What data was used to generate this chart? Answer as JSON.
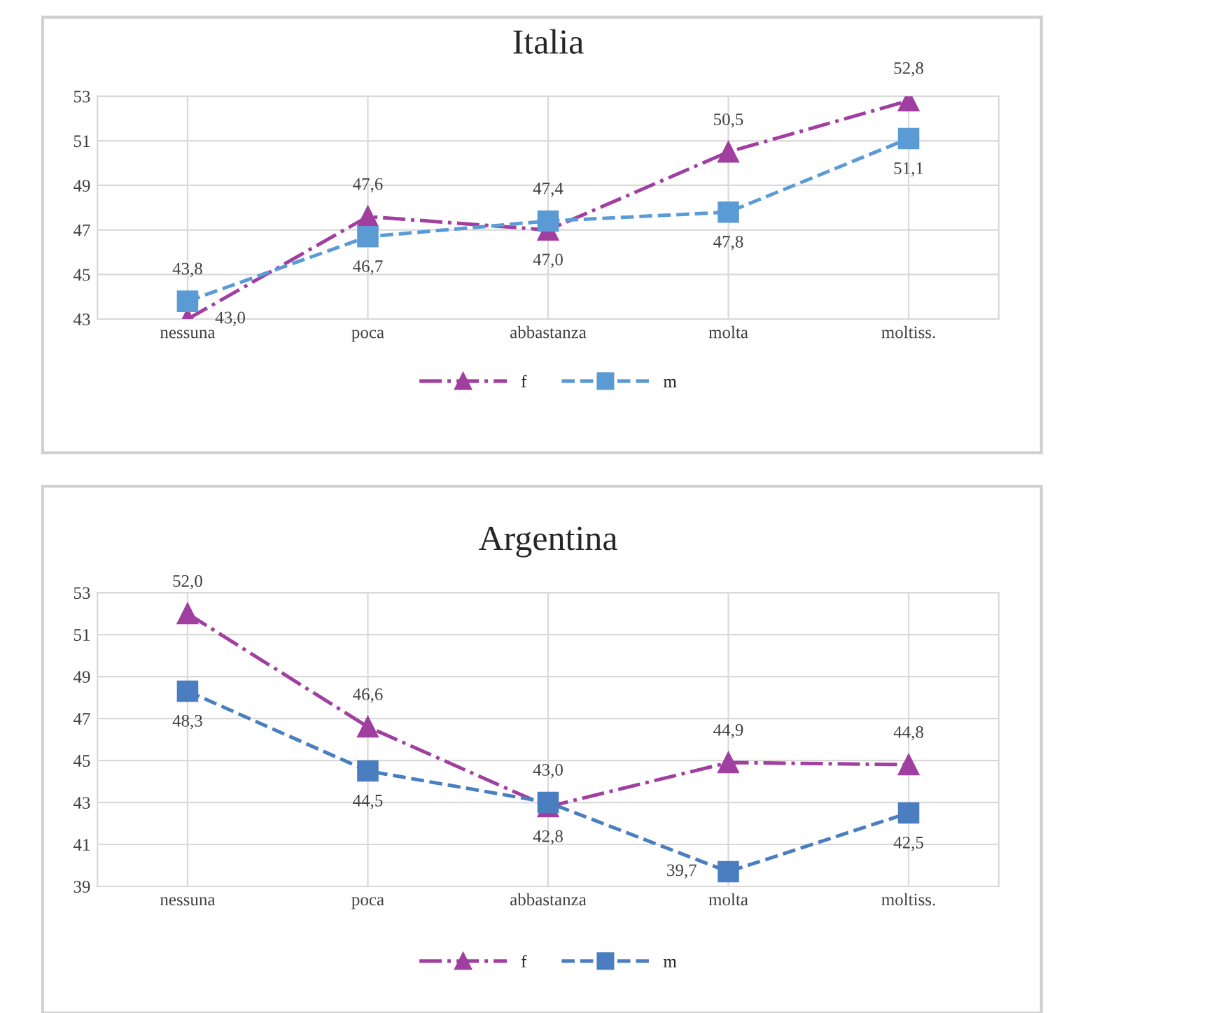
{
  "chart_data": [
    {
      "type": "line",
      "title": "Italia",
      "categories": [
        "nessuna",
        "poca",
        "abbastanza",
        "molta",
        "moltiss."
      ],
      "series": [
        {
          "name": "f",
          "color": "#a03fa0",
          "values": [
            43.0,
            47.6,
            47.0,
            50.5,
            52.8
          ],
          "value_labels": [
            "43,0",
            "47,6",
            "47,0",
            "50,5",
            "52,8"
          ],
          "marker": "triangle",
          "line_style": "dashdot"
        },
        {
          "name": "m",
          "color": "#5b9bd5",
          "values": [
            43.8,
            46.7,
            47.4,
            47.8,
            51.1
          ],
          "value_labels": [
            "43,8",
            "46,7",
            "47,4",
            "47,8",
            "51,1"
          ],
          "marker": "square",
          "line_style": "dashed"
        }
      ],
      "ylim": [
        43,
        53
      ],
      "yticks": [
        43,
        45,
        47,
        49,
        51,
        53
      ],
      "grid": true,
      "legend": "bottom"
    },
    {
      "type": "line",
      "title": "Argentina",
      "categories": [
        "nessuna",
        "poca",
        "abbastanza",
        "molta",
        "moltiss."
      ],
      "series": [
        {
          "name": "f",
          "color": "#a03fa0",
          "values": [
            52.0,
            46.6,
            42.8,
            44.9,
            44.8
          ],
          "value_labels": [
            "52,0",
            "46,6",
            "42,8",
            "44,9",
            "44,8"
          ],
          "marker": "triangle",
          "line_style": "dashdot"
        },
        {
          "name": "m",
          "color": "#4a7ec0",
          "values": [
            48.3,
            44.5,
            43.0,
            39.7,
            42.5
          ],
          "value_labels": [
            "48,3",
            "44,5",
            "43,0",
            "39,7",
            "42,5"
          ],
          "marker": "square",
          "line_style": "dashed"
        }
      ],
      "ylim": [
        39,
        53
      ],
      "yticks": [
        39,
        41,
        43,
        45,
        47,
        49,
        51,
        53
      ],
      "grid": true,
      "legend": "bottom"
    }
  ]
}
